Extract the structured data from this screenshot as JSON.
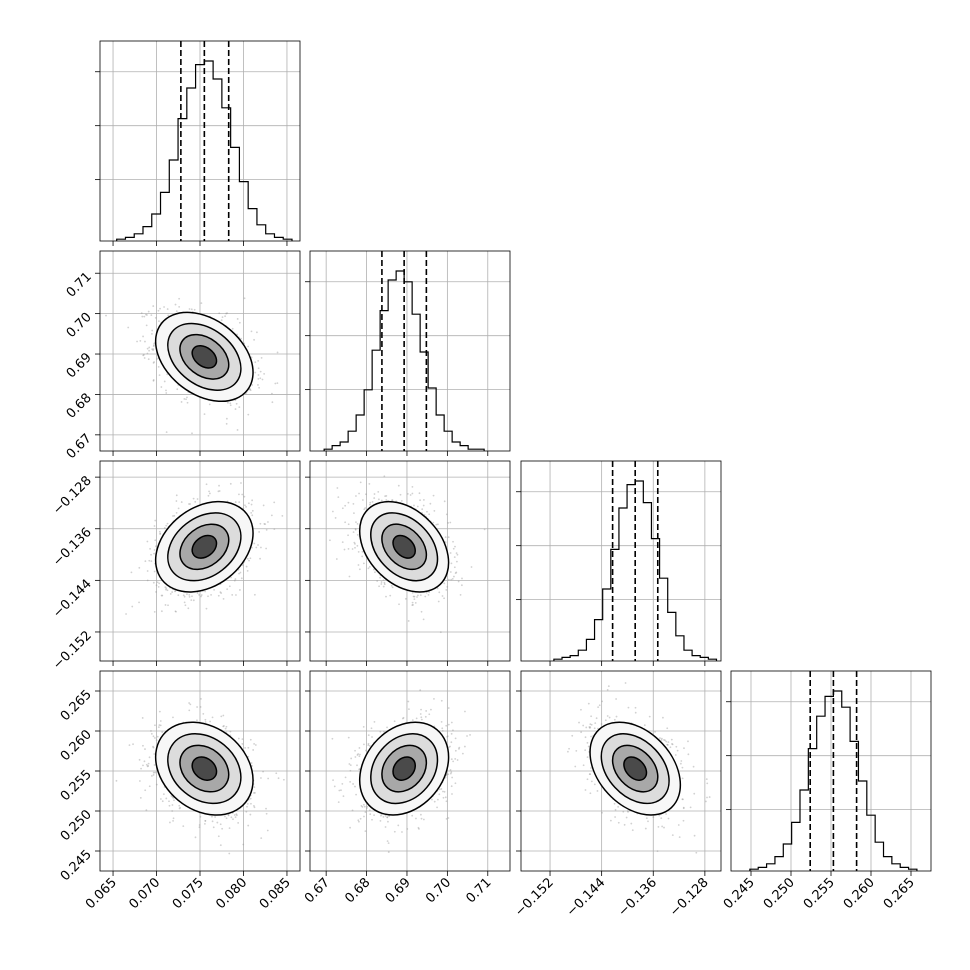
{
  "chart_data": {
    "type": "corner",
    "parameters": [
      {
        "mean": 0.0755,
        "sd": 0.0028,
        "range": [
          0.0635,
          0.0865
        ],
        "ticks": [
          "0.065",
          "0.070",
          "0.075",
          "0.080",
          "0.085"
        ],
        "tick_values": [
          0.065,
          0.07,
          0.075,
          0.08,
          0.085
        ],
        "quantiles": [
          0.0728,
          0.0755,
          0.0783
        ]
      },
      {
        "mean": 0.6893,
        "sd": 0.0055,
        "range": [
          0.666,
          0.7155
        ],
        "ticks": [
          "0.67",
          "0.68",
          "0.69",
          "0.70",
          "0.71"
        ],
        "tick_values": [
          0.67,
          0.68,
          0.69,
          0.7,
          0.71
        ],
        "quantiles": [
          0.6838,
          0.6893,
          0.6948
        ]
      },
      {
        "mean": -0.1388,
        "sd": 0.0035,
        "range": [
          -0.1565,
          -0.1255
        ],
        "ticks": [
          "−0.152",
          "−0.144",
          "−0.136",
          "−0.128"
        ],
        "tick_values": [
          -0.152,
          -0.144,
          -0.136,
          -0.128
        ],
        "quantiles": [
          -0.1423,
          -0.1388,
          -0.1353
        ]
      },
      {
        "mean": 0.2553,
        "sd": 0.0029,
        "range": [
          0.2425,
          0.2675
        ],
        "ticks": [
          "0.245",
          "0.250",
          "0.255",
          "0.260",
          "0.265"
        ],
        "tick_values": [
          0.245,
          0.25,
          0.255,
          0.26,
          0.265
        ],
        "quantiles": [
          0.2524,
          0.2553,
          0.2582
        ]
      }
    ],
    "correlations": {
      "1-0": -0.35,
      "2-0": 0.3,
      "2-1": -0.35,
      "3-0": -0.25,
      "3-1": 0.25,
      "3-2": -0.35
    },
    "histogram_values": [
      [
        0.01,
        0.02,
        0.04,
        0.08,
        0.15,
        0.27,
        0.45,
        0.68,
        0.85,
        0.98,
        1.0,
        0.9,
        0.74,
        0.52,
        0.33,
        0.18,
        0.09,
        0.04,
        0.02,
        0.01
      ],
      [
        0.01,
        0.03,
        0.05,
        0.11,
        0.2,
        0.34,
        0.56,
        0.78,
        0.95,
        1.0,
        0.94,
        0.76,
        0.55,
        0.35,
        0.2,
        0.11,
        0.05,
        0.03,
        0.01,
        0.01
      ],
      [
        0.01,
        0.02,
        0.03,
        0.06,
        0.12,
        0.23,
        0.4,
        0.62,
        0.85,
        0.98,
        1.0,
        0.88,
        0.68,
        0.46,
        0.27,
        0.14,
        0.06,
        0.03,
        0.02,
        0.01
      ],
      [
        0.01,
        0.02,
        0.04,
        0.08,
        0.15,
        0.27,
        0.45,
        0.68,
        0.86,
        0.97,
        1.0,
        0.91,
        0.72,
        0.5,
        0.31,
        0.16,
        0.08,
        0.04,
        0.02,
        0.01
      ]
    ],
    "contour_levels_sigma": [
      0.5,
      1.0,
      1.5,
      2.0
    ],
    "grid": true,
    "legend": "none"
  }
}
